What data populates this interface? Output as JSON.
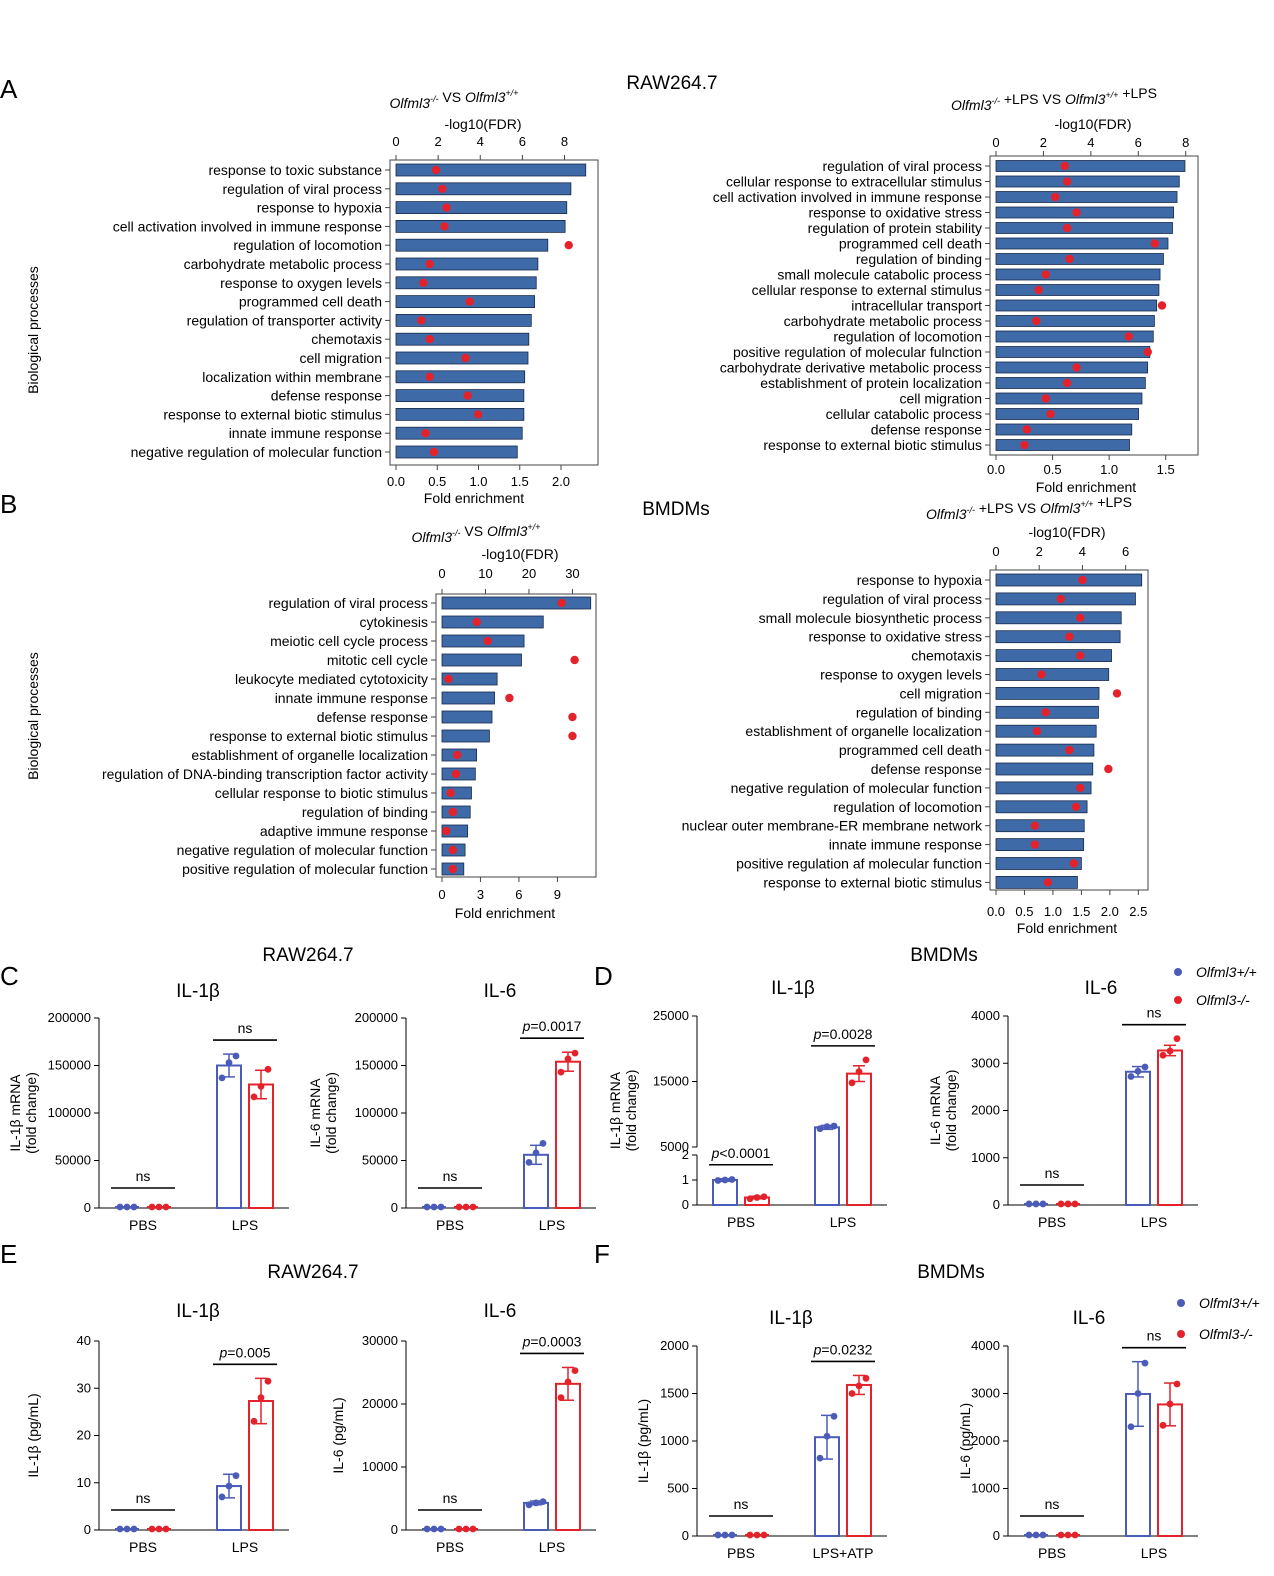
{
  "panel_labels": [
    "A",
    "B",
    "C",
    "D",
    "E",
    "F"
  ],
  "section_titles": {
    "A": "RAW264.7",
    "B": "BMDMs",
    "C": "RAW264.7",
    "D": "BMDMs",
    "E": "RAW264.7",
    "F": "BMDMs"
  },
  "legend": {
    "wt": "Olfml3+/+",
    "ko": "Olfml3-/-",
    "wt_color": "#4a5cb8",
    "ko_color": "#e3222b"
  },
  "colors": {
    "bar": "#3e6ba8",
    "bar_edge": "#1a2a4a",
    "dot": "#e3222b",
    "wt": "#4a5cb8",
    "ko": "#e3222b"
  },
  "chart_data": [
    {
      "id": "A1",
      "type": "bar",
      "orientation": "horizontal",
      "subtitle": "Olfml3-/- VS Olfml3+/+",
      "ylabel": "Biological processes",
      "xlabel": "Fold enrichment",
      "xlim": [
        0,
        2.4
      ],
      "xticks": [
        "0.0",
        "0.5",
        "1.0",
        "1.5",
        "2.0"
      ],
      "top_label": "-log10(FDR)",
      "top_lim": [
        0,
        9.4
      ],
      "top_ticks": [
        "0",
        "2",
        "4",
        "6",
        "8"
      ],
      "categories": [
        "response to toxic substance",
        "regulation of viral process",
        "response to hypoxia",
        "cell activation involved in immune response",
        "regulation of locomotion",
        "carbohydrate metabolic process",
        "response to oxygen levels",
        "programmed cell death",
        "regulation of transporter activity",
        "chemotaxis",
        "cell migration",
        "localization within membrane",
        "defense response",
        "response to external biotic stimulus",
        "innate immune response",
        "negative regulation of molecular function"
      ],
      "fold_enrichment": [
        2.3,
        2.12,
        2.07,
        2.05,
        1.84,
        1.72,
        1.7,
        1.68,
        1.64,
        1.61,
        1.6,
        1.56,
        1.55,
        1.55,
        1.53,
        1.47
      ],
      "neg_log10_fdr": [
        1.9,
        2.2,
        2.4,
        2.3,
        8.2,
        1.6,
        1.3,
        3.5,
        1.2,
        1.6,
        3.3,
        1.6,
        3.4,
        3.9,
        1.4,
        1.8
      ]
    },
    {
      "id": "A2",
      "type": "bar",
      "orientation": "horizontal",
      "subtitle": "Olfml3-/- +LPS VS Olfml3+/+ +LPS",
      "ylabel": "",
      "xlabel": "Fold enrichment",
      "xlim": [
        0,
        1.75
      ],
      "xticks": [
        "0.0",
        "0.5",
        "1.0",
        "1.5"
      ],
      "top_label": "-log10(FDR)",
      "top_lim": [
        0,
        8.35
      ],
      "top_ticks": [
        "0",
        "2",
        "4",
        "6",
        "8"
      ],
      "categories": [
        "regulation of viral process",
        "cellular response to extracellular stimulus",
        "cell activation involved in immune response",
        "response to oxidative stress",
        "regulation of protein stability",
        "programmed cell death",
        "regulation of binding",
        "small molecule catabolic process",
        "cellular response to external stimulus",
        "intracellular transport",
        "carbohydrate metabolic process",
        "regulation of locomotion",
        "positive regulation of molecular fulnction",
        "carbohydrate derivative metabolic process",
        "establishment of protein localization",
        "cell migration",
        "cellular catabolic process",
        "defense response",
        "response to external biotic stimulus"
      ],
      "fold_enrichment": [
        1.67,
        1.62,
        1.6,
        1.57,
        1.56,
        1.52,
        1.48,
        1.45,
        1.44,
        1.42,
        1.4,
        1.39,
        1.36,
        1.34,
        1.32,
        1.29,
        1.26,
        1.2,
        1.18
      ],
      "neg_log10_fdr": [
        2.9,
        3.0,
        2.5,
        3.4,
        3.0,
        6.7,
        3.1,
        2.1,
        1.8,
        7.0,
        1.7,
        5.6,
        6.4,
        3.4,
        3.0,
        2.1,
        2.3,
        1.3,
        1.2
      ]
    },
    {
      "id": "B1",
      "type": "bar",
      "orientation": "horizontal",
      "subtitle": "Olfml3-/- VS Olfml3+/+",
      "ylabel": "Biological processes",
      "xlabel": "Fold enrichment",
      "xlim": [
        0,
        11.7
      ],
      "xticks": [
        "0",
        "3",
        "6",
        "9"
      ],
      "top_label": "-log10(FDR)",
      "top_lim": [
        0,
        34.5
      ],
      "top_ticks": [
        "0",
        "10",
        "20",
        "30"
      ],
      "categories": [
        "regulation of viral process",
        "cytokinesis",
        "meiotic cell cycle process",
        "mitotic cell cycle",
        "leukocyte mediated cytotoxicity",
        "innate immune response",
        "defense response",
        "response to external biotic stimulus",
        "establishment of organelle localization",
        "regulation of DNA-binding transcription factor activity",
        "cellular response to biotic stimulus",
        "regulation of binding",
        "adaptive immune response",
        "negative regulation of molecular function",
        "positive regulation of molecular function"
      ],
      "fold_enrichment": [
        11.6,
        7.9,
        6.4,
        6.2,
        4.3,
        4.1,
        3.9,
        3.7,
        2.7,
        2.6,
        2.3,
        2.2,
        2.0,
        1.8,
        1.7
      ],
      "neg_log10_fdr": [
        27.5,
        8.0,
        10.5,
        30.5,
        1.5,
        15.5,
        30.0,
        30.0,
        3.5,
        3.2,
        2.0,
        2.5,
        1.0,
        2.5,
        2.5
      ]
    },
    {
      "id": "B2",
      "type": "bar",
      "orientation": "horizontal",
      "subtitle": "Olfml3-/- +LPS VS Olfml3+/+ +LPS",
      "ylabel": "",
      "xlabel": "Fold enrichment",
      "xlim": [
        0,
        2.6
      ],
      "xticks": [
        "0.0",
        "0.5",
        "1.0",
        "1.5",
        "2.0",
        "2.5"
      ],
      "top_label": "-log10(FDR)",
      "top_lim": [
        0,
        6.85
      ],
      "top_ticks": [
        "0",
        "2",
        "4",
        "6"
      ],
      "categories": [
        "response to hypoxia",
        "regulation of viral process",
        "small molecule biosynthetic process",
        "response to oxidative stress",
        "chemotaxis",
        "response to oxygen levels",
        "cell migration",
        "regulation of binding",
        "establishment of organelle localization",
        "programmed cell death",
        "defense response",
        "negative regulation of molecular function",
        "regulation of locomotion",
        "nuclear outer membrane-ER membrane network",
        "innate immune response",
        "positive regulation af molecular function",
        "response to external biotic stimulus"
      ],
      "fold_enrichment": [
        2.56,
        2.45,
        2.2,
        2.18,
        2.03,
        1.98,
        1.81,
        1.8,
        1.76,
        1.72,
        1.7,
        1.67,
        1.6,
        1.55,
        1.54,
        1.5,
        1.43
      ],
      "neg_log10_fdr": [
        4.0,
        3.0,
        3.9,
        3.4,
        3.9,
        2.1,
        5.6,
        2.3,
        1.9,
        3.4,
        5.2,
        3.9,
        3.7,
        1.8,
        1.8,
        3.6,
        2.4
      ]
    },
    {
      "id": "C1",
      "type": "bar",
      "title": "IL-1β",
      "ylabel": "IL-1β mRNA\n(fold change)",
      "categories": [
        "PBS",
        "LPS"
      ],
      "ylim": [
        0,
        200000
      ],
      "yticks": [
        "0",
        "50000",
        "100000",
        "150000",
        "200000"
      ],
      "series": [
        {
          "name": "Olfml3+/+",
          "values": [
            1,
            150000
          ],
          "error": [
            0,
            12000
          ],
          "points": [
            [
              1,
              1,
              1
            ],
            [
              137000,
              153000,
              160000
            ]
          ]
        },
        {
          "name": "Olfml3-/-",
          "values": [
            1,
            130000
          ],
          "error": [
            0,
            15000
          ],
          "points": [
            [
              1,
              1,
              1
            ],
            [
              117000,
              128000,
              146000
            ]
          ]
        }
      ],
      "annotations": [
        "ns",
        "ns"
      ]
    },
    {
      "id": "C2",
      "type": "bar",
      "title": "IL-6",
      "ylabel": "IL-6 mRNA\n(fold change)",
      "categories": [
        "PBS",
        "LPS"
      ],
      "ylim": [
        0,
        200000
      ],
      "yticks": [
        "0",
        "50000",
        "100000",
        "150000",
        "200000"
      ],
      "series": [
        {
          "name": "Olfml3+/+",
          "values": [
            1,
            56000
          ],
          "error": [
            0,
            10000
          ],
          "points": [
            [
              1,
              1,
              1
            ],
            [
              48000,
              58000,
              68000
            ]
          ]
        },
        {
          "name": "Olfml3-/-",
          "values": [
            1,
            154000
          ],
          "error": [
            0,
            10000
          ],
          "points": [
            [
              1,
              1,
              1
            ],
            [
              143000,
              157000,
              163000
            ]
          ]
        }
      ],
      "annotations": [
        "ns",
        "p=0.0017"
      ]
    },
    {
      "id": "D1",
      "type": "bar",
      "title": "IL-1β",
      "ylabel": "IL-1β mRNA\n(fold change)",
      "categories": [
        "PBS",
        "LPS"
      ],
      "broken_axis": true,
      "ylim_lower": [
        0,
        2
      ],
      "ylim_upper": [
        5000,
        25000
      ],
      "yticks_lower": [
        "0",
        "1",
        "2"
      ],
      "yticks_upper": [
        "5000",
        "15000",
        "25000"
      ],
      "series": [
        {
          "name": "Olfml3+/+",
          "values": [
            1.0,
            8000
          ],
          "error": [
            0.05,
            300
          ],
          "points": [
            [
              0.98,
              1.0,
              1.02
            ],
            [
              7800,
              8100,
              8200
            ]
          ]
        },
        {
          "name": "Olfml3-/-",
          "values": [
            0.3,
            16200
          ],
          "error": [
            0.05,
            1200
          ],
          "points": [
            [
              0.25,
              0.3,
              0.33
            ],
            [
              14800,
              16500,
              18300
            ]
          ]
        }
      ],
      "annotations": [
        "p<0.0001",
        "p=0.0028"
      ]
    },
    {
      "id": "D2",
      "type": "bar",
      "title": "IL-6",
      "ylabel": "IL-6 mRNA\n(fold change)",
      "categories": [
        "PBS",
        "LPS"
      ],
      "ylim": [
        0,
        4000
      ],
      "yticks": [
        "0",
        "1000",
        "2000",
        "3000",
        "4000"
      ],
      "series": [
        {
          "name": "Olfml3+/+",
          "values": [
            1,
            2820
          ],
          "error": [
            0,
            110
          ],
          "points": [
            [
              1,
              1,
              1
            ],
            [
              2720,
              2830,
              2920
            ]
          ]
        },
        {
          "name": "Olfml3-/-",
          "values": [
            1,
            3270
          ],
          "error": [
            0,
            110
          ],
          "points": [
            [
              1,
              1,
              1
            ],
            [
              3170,
              3260,
              3520
            ]
          ]
        }
      ],
      "annotations": [
        "ns",
        "ns"
      ]
    },
    {
      "id": "E1",
      "type": "bar",
      "title": "IL-1β",
      "ylabel": "IL-1β (pg/mL)",
      "categories": [
        "PBS",
        "LPS"
      ],
      "ylim": [
        0,
        40
      ],
      "yticks": [
        "0",
        "10",
        "20",
        "30",
        "40"
      ],
      "series": [
        {
          "name": "Olfml3+/+",
          "values": [
            0,
            9.3
          ],
          "error": [
            0,
            2.5
          ],
          "points": [
            [
              0,
              0,
              0
            ],
            [
              7.0,
              9.3,
              11.5
            ]
          ]
        },
        {
          "name": "Olfml3-/-",
          "values": [
            0,
            27.3
          ],
          "error": [
            0,
            4.8
          ],
          "points": [
            [
              0,
              0,
              0
            ],
            [
              23.0,
              28.0,
              31.5
            ]
          ]
        }
      ],
      "annotations": [
        "ns",
        "p=0.005"
      ]
    },
    {
      "id": "E2",
      "type": "bar",
      "title": "IL-6",
      "ylabel": "IL-6 (pg/mL)",
      "categories": [
        "PBS",
        "LPS"
      ],
      "ylim": [
        0,
        30000
      ],
      "yticks": [
        "0",
        "10000",
        "20000",
        "30000"
      ],
      "series": [
        {
          "name": "Olfml3+/+",
          "values": [
            0,
            4300
          ],
          "error": [
            0,
            300
          ],
          "points": [
            [
              0,
              0,
              0
            ],
            [
              4000,
              4300,
              4500
            ]
          ]
        },
        {
          "name": "Olfml3-/-",
          "values": [
            0,
            23200
          ],
          "error": [
            0,
            2600
          ],
          "points": [
            [
              0,
              0,
              0
            ],
            [
              21000,
              23500,
              25300
            ]
          ]
        }
      ],
      "annotations": [
        "ns",
        "p=0.0003"
      ]
    },
    {
      "id": "F1",
      "type": "bar",
      "title": "IL-1β",
      "ylabel": "IL-1β (pg/mL)",
      "categories": [
        "PBS",
        "LPS+ATP"
      ],
      "ylim": [
        0,
        2000
      ],
      "yticks": [
        "0",
        "500",
        "1000",
        "1500",
        "2000"
      ],
      "series": [
        {
          "name": "Olfml3+/+",
          "values": [
            0,
            1040
          ],
          "error": [
            0,
            230
          ],
          "points": [
            [
              0,
              0,
              0
            ],
            [
              820,
              1050,
              1260
            ]
          ]
        },
        {
          "name": "Olfml3-/-",
          "values": [
            0,
            1590
          ],
          "error": [
            0,
            100
          ],
          "points": [
            [
              0,
              0,
              0
            ],
            [
              1500,
              1580,
              1660
            ]
          ]
        }
      ],
      "annotations": [
        "ns",
        "p=0.0232"
      ]
    },
    {
      "id": "F2",
      "type": "bar",
      "title": "IL-6",
      "ylabel": "IL-6 (pg/mL)",
      "categories": [
        "PBS",
        "LPS"
      ],
      "ylim": [
        0,
        4000
      ],
      "yticks": [
        "0",
        "1000",
        "2000",
        "3000",
        "4000"
      ],
      "series": [
        {
          "name": "Olfml3+/+",
          "values": [
            0,
            2990
          ],
          "error": [
            0,
            680
          ],
          "points": [
            [
              0,
              0,
              0
            ],
            [
              2300,
              3000,
              3640
            ]
          ]
        },
        {
          "name": "Olfml3-/-",
          "values": [
            0,
            2770
          ],
          "error": [
            0,
            450
          ],
          "points": [
            [
              0,
              0,
              0
            ],
            [
              2330,
              2780,
              3200
            ]
          ]
        }
      ],
      "annotations": [
        "ns",
        "ns"
      ]
    }
  ]
}
